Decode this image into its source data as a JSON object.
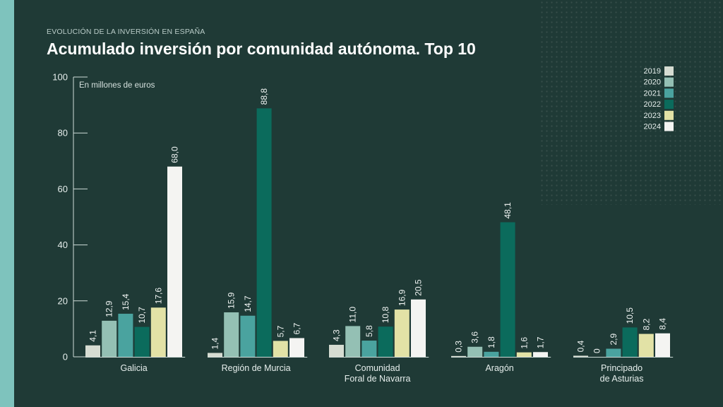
{
  "header": {
    "kicker": "EVOLUCIÓN DE LA INVERSIÓN EN ESPAÑA",
    "title": "Acumulado inversión por comunidad autónoma. Top 10"
  },
  "chart_data": {
    "type": "bar",
    "title": "Acumulado inversión por comunidad autónoma. Top 10",
    "ylabel": "En millones de euros",
    "ylim": [
      0,
      100
    ],
    "yticks": [
      "0",
      "20",
      "40",
      "60",
      "80",
      "100"
    ],
    "categories": [
      [
        "Galicia"
      ],
      [
        "Región de Murcia"
      ],
      [
        "Comunidad",
        "Foral de Navarra"
      ],
      [
        "Aragón"
      ],
      [
        "Principado",
        "de Asturias"
      ]
    ],
    "series": [
      {
        "name": "2019",
        "color": "#d6dcd2",
        "values": [
          4.1,
          1.4,
          4.3,
          0.3,
          0.4
        ],
        "labels": [
          "4,1",
          "1,4",
          "4,3",
          "0,3",
          "0,4"
        ]
      },
      {
        "name": "2020",
        "color": "#94c0b4",
        "values": [
          12.9,
          15.9,
          11.0,
          3.6,
          0
        ],
        "labels": [
          "12,9",
          "15,9",
          "11,0",
          "3,6",
          "0"
        ]
      },
      {
        "name": "2021",
        "color": "#4aa39f",
        "values": [
          15.4,
          14.7,
          5.8,
          1.8,
          2.9
        ],
        "labels": [
          "15,4",
          "14,7",
          "5,8",
          "1,8",
          "2,9"
        ]
      },
      {
        "name": "2022",
        "color": "#0b6b5c",
        "values": [
          10.7,
          88.8,
          10.8,
          48.1,
          10.5
        ],
        "labels": [
          "10,7",
          "88,8",
          "10,8",
          "48,1",
          "10,5"
        ]
      },
      {
        "name": "2023",
        "color": "#e2e2a6",
        "values": [
          17.6,
          5.7,
          16.9,
          1.6,
          8.2
        ],
        "labels": [
          "17,6",
          "5,7",
          "16,9",
          "1,6",
          "8,2"
        ]
      },
      {
        "name": "2024",
        "color": "#f4f4f2",
        "values": [
          68.0,
          6.7,
          20.5,
          1.7,
          8.4
        ],
        "labels": [
          "68,0",
          "6,7",
          "20,5",
          "1,7",
          "8,4"
        ]
      }
    ],
    "legend_position": "top-right"
  }
}
